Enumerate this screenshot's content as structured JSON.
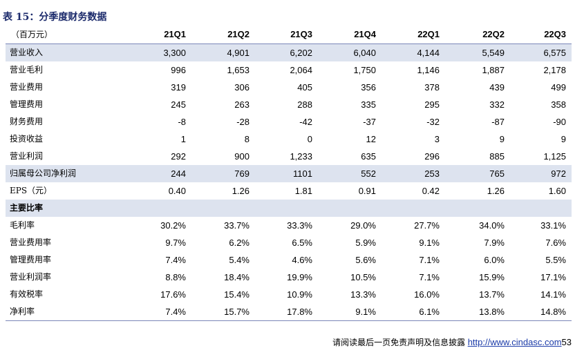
{
  "title": "表 15：分季度财务数据",
  "table": {
    "unit_label": "（百万元）",
    "columns": [
      "21Q1",
      "21Q2",
      "21Q3",
      "21Q4",
      "22Q1",
      "22Q2",
      "22Q3"
    ],
    "rows": [
      {
        "label": "营业收入",
        "values": [
          "3,300",
          "4,901",
          "6,202",
          "6,040",
          "4,144",
          "5,549",
          "6,575"
        ],
        "shaded": true
      },
      {
        "label": "营业毛利",
        "values": [
          "996",
          "1,653",
          "2,064",
          "1,750",
          "1,146",
          "1,887",
          "2,178"
        ]
      },
      {
        "label": "营业费用",
        "values": [
          "319",
          "306",
          "405",
          "356",
          "378",
          "439",
          "499"
        ]
      },
      {
        "label": "管理费用",
        "values": [
          "245",
          "263",
          "288",
          "335",
          "295",
          "332",
          "358"
        ]
      },
      {
        "label": "财务费用",
        "values": [
          "-8",
          "-28",
          "-42",
          "-37",
          "-32",
          "-87",
          "-90"
        ]
      },
      {
        "label": "投资收益",
        "values": [
          "1",
          "8",
          "0",
          "12",
          "3",
          "9",
          "9"
        ]
      },
      {
        "label": "营业利润",
        "values": [
          "292",
          "900",
          "1,233",
          "635",
          "296",
          "885",
          "1,125"
        ]
      },
      {
        "label": "归属母公司净利润",
        "values": [
          "244",
          "769",
          "1101",
          "552",
          "253",
          "765",
          "972"
        ],
        "shaded": true
      },
      {
        "label": "EPS（元）",
        "values": [
          "0.40",
          "1.26",
          "1.81",
          "0.91",
          "0.42",
          "1.26",
          "1.60"
        ]
      },
      {
        "label": "主要比率",
        "values": [],
        "shaded": true,
        "section": true
      },
      {
        "label": "毛利率",
        "values": [
          "30.2%",
          "33.7%",
          "33.3%",
          "29.0%",
          "27.7%",
          "34.0%",
          "33.1%"
        ]
      },
      {
        "label": "营业费用率",
        "values": [
          "9.7%",
          "6.2%",
          "6.5%",
          "5.9%",
          "9.1%",
          "7.9%",
          "7.6%"
        ]
      },
      {
        "label": "管理费用率",
        "values": [
          "7.4%",
          "5.4%",
          "4.6%",
          "5.6%",
          "7.1%",
          "6.0%",
          "5.5%"
        ]
      },
      {
        "label": "营业利润率",
        "values": [
          "8.8%",
          "18.4%",
          "19.9%",
          "10.5%",
          "7.1%",
          "15.9%",
          "17.1%"
        ]
      },
      {
        "label": "有效税率",
        "values": [
          "17.6%",
          "15.4%",
          "10.9%",
          "13.3%",
          "16.0%",
          "13.7%",
          "14.1%"
        ]
      },
      {
        "label": "净利率",
        "values": [
          "7.4%",
          "15.7%",
          "17.8%",
          "9.1%",
          "6.1%",
          "13.8%",
          "14.8%"
        ]
      }
    ]
  },
  "footer": {
    "disclaimer": "请阅读最后一页免责声明及信息披露",
    "url": "http://www.cindasc.com",
    "page": "53"
  }
}
